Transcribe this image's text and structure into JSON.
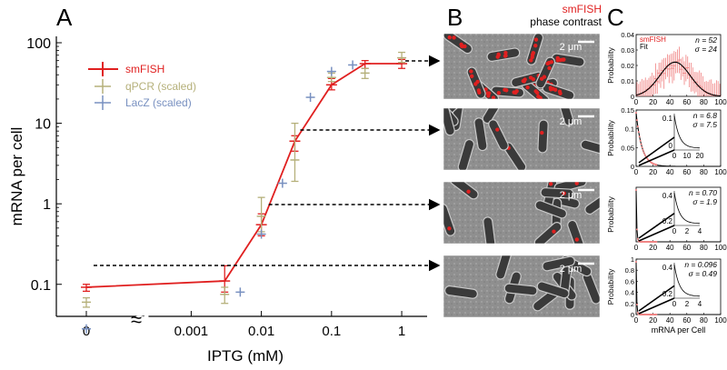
{
  "panels": {
    "a": "A",
    "b": "B",
    "c": "C"
  },
  "panel_b": {
    "legend_red": "smFISH",
    "legend_black": "phase contrast",
    "scale_label": "2 μm"
  },
  "colors": {
    "smfish": "#e02020",
    "qpcr": "#b5b07a",
    "lacz": "#7890c0",
    "fit": "#000000"
  },
  "chart_data": [
    {
      "type": "line",
      "panel": "A",
      "xlabel": "IPTG (mM)",
      "ylabel": "mRNA per cell",
      "x_scale": "log with axis break (0 shown separately)",
      "x_ticks": [
        "0",
        "0.001",
        "0.01",
        "0.1",
        "1"
      ],
      "y_scale": "log",
      "y_ticks": [
        "0.1",
        "1",
        "10",
        "100"
      ],
      "ylim": [
        0.04,
        120
      ],
      "legend_position": "upper-left",
      "series": [
        {
          "name": "smFISH",
          "style": "line+errorbar",
          "x": [
            0,
            0.003,
            0.01,
            0.03,
            0.1,
            0.3,
            1
          ],
          "y": [
            0.092,
            0.11,
            0.55,
            6.0,
            30,
            55,
            55
          ],
          "err_lo": [
            0.082,
            0.08,
            0.4,
            4.5,
            26,
            48,
            48
          ],
          "err_hi": [
            0.1,
            0.17,
            0.75,
            7.0,
            36,
            60,
            62
          ]
        },
        {
          "name": "qPCR (scaled)",
          "style": "errorbar",
          "x": [
            0,
            0.003,
            0.01,
            0.03,
            0.1,
            0.3,
            1
          ],
          "y": [
            0.06,
            0.075,
            0.7,
            3.5,
            37,
            42,
            65
          ],
          "err_lo": [
            0.052,
            0.058,
            0.45,
            1.9,
            33,
            36,
            57
          ],
          "err_hi": [
            0.068,
            0.092,
            1.2,
            10,
            42,
            48,
            76
          ]
        },
        {
          "name": "LacZ (scaled)",
          "style": "marker",
          "x": [
            0,
            0.005,
            0.01,
            0.02,
            0.05,
            0.1,
            0.2
          ],
          "y": [
            0.028,
            0.08,
            0.42,
            1.8,
            21,
            44,
            53
          ]
        }
      ]
    },
    {
      "type": "histogram",
      "panel": "C1",
      "legend": [
        "smFISH",
        "Fit"
      ],
      "annotation_n": "n = 52",
      "annotation_sigma": "σ = 24",
      "xlim": [
        0,
        100
      ],
      "ylim": [
        0,
        0.04
      ],
      "y_ticks": [
        "0",
        "0.01",
        "0.02",
        "0.03",
        "0.04"
      ],
      "x_ticks": [
        "0",
        "20",
        "40",
        "60",
        "80",
        "100"
      ],
      "ylabel": "Probability",
      "fit_mean": 46,
      "fit_sd": 18
    },
    {
      "type": "histogram",
      "panel": "C2",
      "annotation_n": "n = 6.8",
      "annotation_sigma": "σ = 7.5",
      "xlim": [
        0,
        100
      ],
      "ylim": [
        0,
        0.15
      ],
      "y_ticks": [
        "0",
        "0.05",
        "0.1",
        "0.15"
      ],
      "x_ticks": [
        "0",
        "20",
        "40",
        "60",
        "80",
        "100"
      ],
      "inset_y_ticks": [
        "0.1",
        "0"
      ],
      "inset_x_ticks": [
        "0",
        "10",
        "20"
      ],
      "ylabel": "Probability",
      "fit_decay_mean": 6.8
    },
    {
      "type": "histogram",
      "panel": "C3",
      "annotation_n": "n = 0.70",
      "annotation_sigma": "σ = 1.9",
      "xlim": [
        0,
        100
      ],
      "ylim": [
        0,
        0.6
      ],
      "inset_y_ticks": [
        "0.4",
        "0.2"
      ],
      "inset_x_ticks": [
        "0",
        "2",
        "4"
      ],
      "x_ticks": [
        "0",
        "20",
        "40",
        "60",
        "80",
        "100"
      ],
      "ylabel": "Probability",
      "fit_decay_mean": 0.7
    },
    {
      "type": "histogram",
      "panel": "C4",
      "annotation_n": "n = 0.096",
      "annotation_sigma": "σ = 0.49",
      "xlim": [
        0,
        100
      ],
      "ylim": [
        0,
        1
      ],
      "y_ticks": [
        "0",
        "0.2",
        "0.4",
        "0.6",
        "0.8",
        "1"
      ],
      "inset_y_ticks": [
        "0.4",
        "0.2"
      ],
      "inset_x_ticks": [
        "0",
        "2",
        "4"
      ],
      "x_ticks": [
        "0",
        "20",
        "40",
        "60",
        "80",
        "100"
      ],
      "ylabel": "Probability",
      "xlabel": "mRNA per Cell",
      "fit_decay_mean": 0.1
    }
  ]
}
